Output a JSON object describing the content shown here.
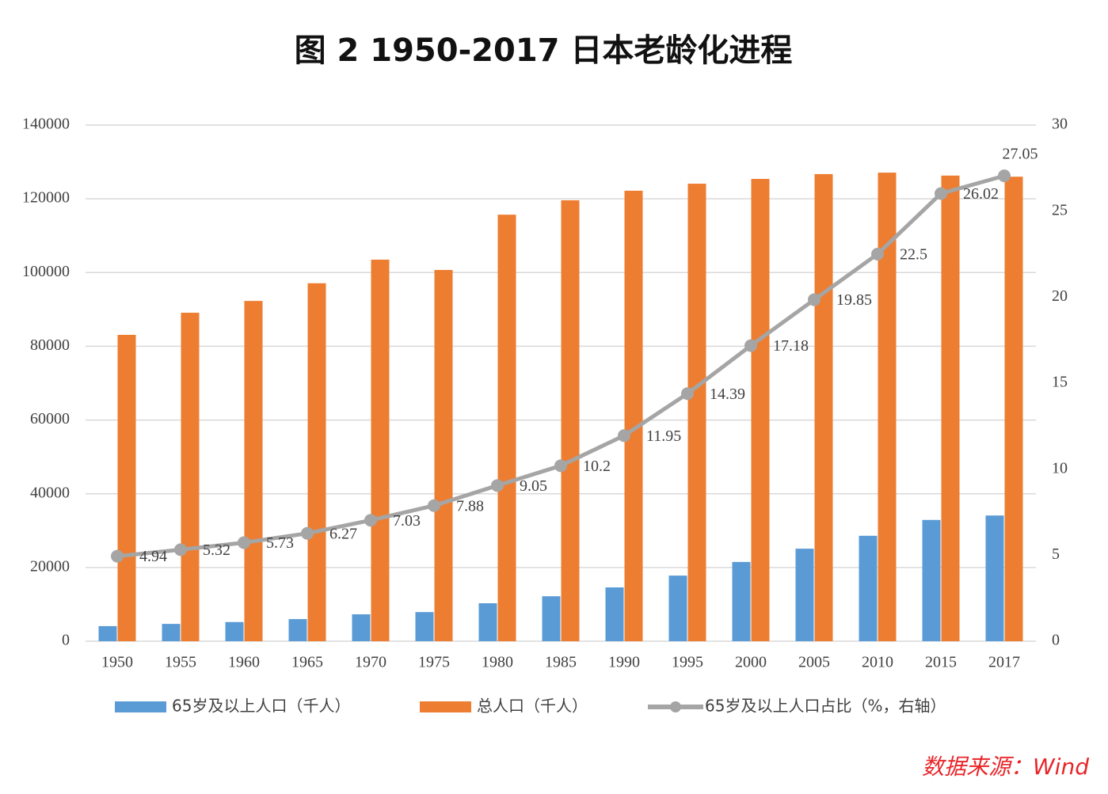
{
  "chart_data": {
    "type": "bar",
    "title": "图 2   1950-2017 日本老龄化进程",
    "categories": [
      "1950",
      "1955",
      "1960",
      "1965",
      "1970",
      "1975",
      "1980",
      "1985",
      "1990",
      "1995",
      "2000",
      "2005",
      "2010",
      "2015",
      "2017"
    ],
    "series": [
      {
        "name": "65岁及以上人口（千人）",
        "type": "bar",
        "color": "#5b9bd5",
        "values": [
          4100,
          4700,
          5200,
          6000,
          7300,
          7900,
          10300,
          12200,
          14600,
          17800,
          21500,
          25100,
          28600,
          32900,
          34100
        ]
      },
      {
        "name": "总人口（千人）",
        "type": "bar",
        "color": "#ed7d31",
        "values": [
          83100,
          89100,
          92300,
          97100,
          103500,
          100700,
          115700,
          119600,
          122200,
          124100,
          125400,
          126700,
          127100,
          126300,
          126000
        ]
      },
      {
        "name": "65岁及以上人口占比（%，右轴）",
        "type": "line",
        "axis": "y2",
        "color": "#a5a5a5",
        "values": [
          4.94,
          5.32,
          5.73,
          6.27,
          7.03,
          7.88,
          9.05,
          10.2,
          11.95,
          14.39,
          17.18,
          19.85,
          22.5,
          26.02,
          27.05
        ]
      }
    ],
    "ylim": [
      0,
      140000
    ],
    "yticks": [
      0,
      20000,
      40000,
      60000,
      80000,
      100000,
      120000,
      140000
    ],
    "y2lim": [
      0,
      30
    ],
    "y2ticks": [
      0,
      5,
      10,
      15,
      20,
      25,
      30
    ],
    "grid": true,
    "legend": "bottom",
    "source": "数据来源：Wind"
  }
}
